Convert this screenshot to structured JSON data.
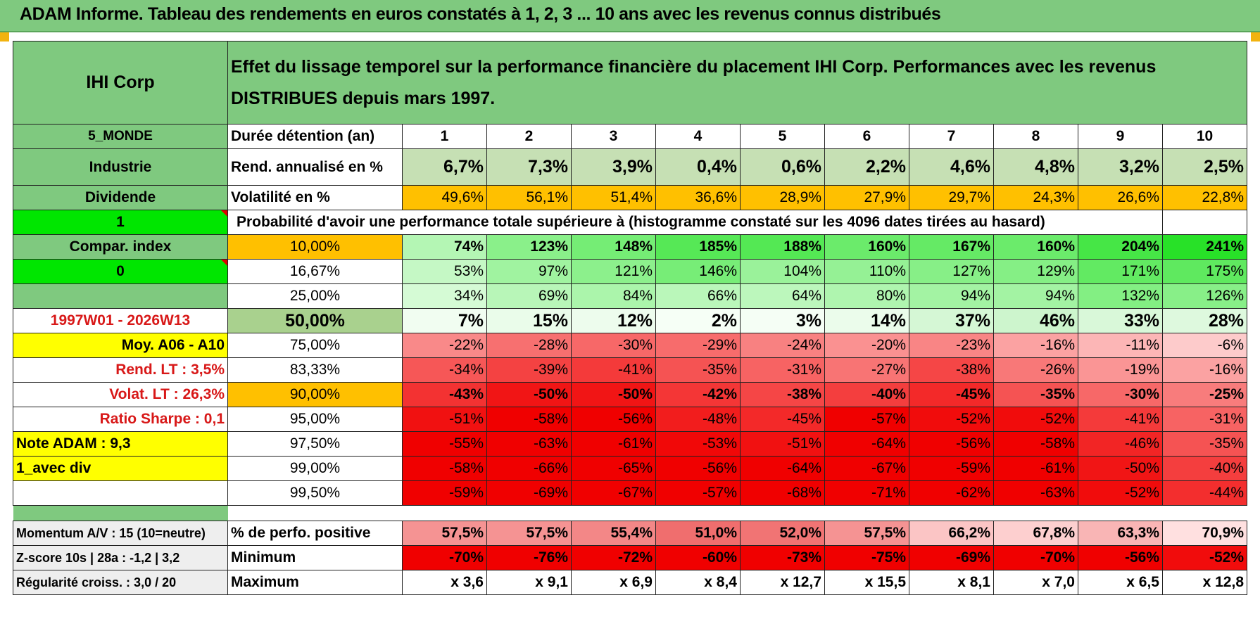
{
  "title": "ADAM Informe. Tableau des rendements en euros constatés à 1, 2, 3 ... 10 ans avec les revenus connus distribués",
  "header": {
    "company": "IHI Corp",
    "description": "Effet du lissage temporel sur la performance financière du placement IHI Corp. Performances avec les revenus DISTRIBUES depuis mars 1997."
  },
  "side": {
    "region": "5_MONDE",
    "sector": "Industrie",
    "type": "Dividende",
    "box1": "1",
    "compar": "Compar. index",
    "box0": "0",
    "period": "1997W01 - 2026W13",
    "moy": "Moy. A06 - A10",
    "rend_lt": "Rend. LT :   3,5%",
    "volat_lt": "Volat. LT :   26,3%",
    "sharpe": "Ratio Sharpe :    0,1",
    "note": "Note ADAM : 9,3",
    "avec_div": "1_avec div"
  },
  "row_labels": {
    "duree": "Durée détention (an)",
    "rend": "Rend. annualisé en %",
    "vol": "Volatilité en %",
    "proba": "Probabilité d'avoir une performance totale supérieure à (histogramme constaté sur les 4096 dates tirées au hasard)"
  },
  "years": [
    "1",
    "2",
    "3",
    "4",
    "5",
    "6",
    "7",
    "8",
    "9",
    "10"
  ],
  "rend": [
    "6,7%",
    "7,3%",
    "3,9%",
    "0,4%",
    "0,6%",
    "2,2%",
    "4,6%",
    "4,8%",
    "3,2%",
    "2,5%"
  ],
  "vol": [
    "49,6%",
    "56,1%",
    "51,4%",
    "36,6%",
    "28,9%",
    "27,9%",
    "29,7%",
    "24,3%",
    "26,6%",
    "22,8%"
  ],
  "prob_rows": [
    {
      "p": "10,00%",
      "v": [
        "74%",
        "123%",
        "148%",
        "185%",
        "188%",
        "160%",
        "167%",
        "160%",
        "204%",
        "241%"
      ]
    },
    {
      "p": "16,67%",
      "v": [
        "53%",
        "97%",
        "121%",
        "146%",
        "104%",
        "110%",
        "127%",
        "129%",
        "171%",
        "175%"
      ]
    },
    {
      "p": "25,00%",
      "v": [
        "34%",
        "69%",
        "84%",
        "66%",
        "64%",
        "80%",
        "94%",
        "94%",
        "132%",
        "126%"
      ]
    },
    {
      "p": "50,00%",
      "v": [
        "7%",
        "15%",
        "12%",
        "2%",
        "3%",
        "14%",
        "37%",
        "46%",
        "33%",
        "28%"
      ]
    },
    {
      "p": "75,00%",
      "v": [
        "-22%",
        "-28%",
        "-30%",
        "-29%",
        "-24%",
        "-20%",
        "-23%",
        "-16%",
        "-11%",
        "-6%"
      ]
    },
    {
      "p": "83,33%",
      "v": [
        "-34%",
        "-39%",
        "-41%",
        "-35%",
        "-31%",
        "-27%",
        "-38%",
        "-26%",
        "-19%",
        "-16%"
      ]
    },
    {
      "p": "90,00%",
      "v": [
        "-43%",
        "-50%",
        "-50%",
        "-42%",
        "-38%",
        "-40%",
        "-45%",
        "-35%",
        "-30%",
        "-25%"
      ]
    },
    {
      "p": "95,00%",
      "v": [
        "-51%",
        "-58%",
        "-56%",
        "-48%",
        "-45%",
        "-57%",
        "-52%",
        "-52%",
        "-41%",
        "-31%"
      ]
    },
    {
      "p": "97,50%",
      "v": [
        "-55%",
        "-63%",
        "-61%",
        "-53%",
        "-51%",
        "-64%",
        "-56%",
        "-58%",
        "-46%",
        "-35%"
      ]
    },
    {
      "p": "99,00%",
      "v": [
        "-58%",
        "-66%",
        "-65%",
        "-56%",
        "-64%",
        "-67%",
        "-59%",
        "-61%",
        "-50%",
        "-40%"
      ]
    },
    {
      "p": "99,50%",
      "v": [
        "-59%",
        "-69%",
        "-67%",
        "-57%",
        "-68%",
        "-71%",
        "-62%",
        "-63%",
        "-52%",
        "-44%"
      ]
    }
  ],
  "bottom": [
    {
      "left": "Momentum A/V : 15 (10=neutre)",
      "label": "% de perfo. positive",
      "v": [
        "57,5%",
        "57,5%",
        "55,4%",
        "51,0%",
        "52,0%",
        "57,5%",
        "66,2%",
        "67,8%",
        "63,3%",
        "70,9%"
      ]
    },
    {
      "left": "Z-score 10s | 28a : -1,2 | 3,2",
      "label": "Minimum",
      "v": [
        "-70%",
        "-76%",
        "-72%",
        "-60%",
        "-73%",
        "-75%",
        "-69%",
        "-70%",
        "-56%",
        "-52%"
      ]
    },
    {
      "left": "Régularité croiss. : 3,0 / 20",
      "label": "Maximum",
      "v": [
        "x 3,6",
        "x 9,1",
        "x 6,9",
        "x 8,4",
        "x 12,7",
        "x 15,5",
        "x 8,1",
        "x 7,0",
        "x 6,5",
        "x 12,8"
      ]
    }
  ],
  "colors": {
    "header_green": "#7fc97f",
    "bright_green": "#00e600",
    "orange": "#ffc000",
    "yellow": "#ffff00",
    "red_text": "#d81818",
    "rend_bg": "#c6e0b4"
  }
}
